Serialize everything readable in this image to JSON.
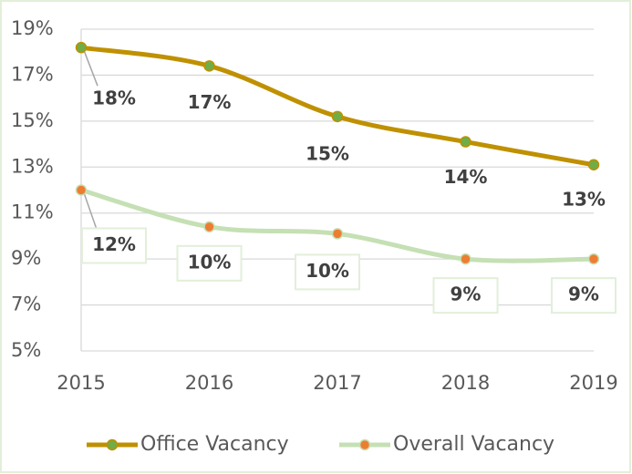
{
  "chart_data": {
    "type": "line",
    "categories": [
      "2015",
      "2016",
      "2017",
      "2018",
      "2019"
    ],
    "series": [
      {
        "name": "Office Vacancy",
        "color": "#bf9000",
        "marker_color": "#70ad47",
        "values": [
          18.2,
          17.4,
          15.2,
          14.1,
          13.1
        ],
        "value_labels": [
          "18%",
          "17%",
          "15%",
          "14%",
          "13%"
        ]
      },
      {
        "name": "Overall Vacancy",
        "color": "#c5e0b4",
        "marker_color": "#ed7d31",
        "values": [
          12.0,
          10.4,
          10.1,
          9.0,
          9.0
        ],
        "value_labels": [
          "12%",
          "10%",
          "10%",
          "9%",
          "9%"
        ]
      }
    ],
    "ylim": [
      5,
      19
    ],
    "yticks": [
      {
        "value": 5,
        "label": "5%"
      },
      {
        "value": 7,
        "label": "7%"
      },
      {
        "value": 9,
        "label": "9%"
      },
      {
        "value": 11,
        "label": "11%"
      },
      {
        "value": 13,
        "label": "13%"
      },
      {
        "value": 15,
        "label": "15%"
      },
      {
        "value": 17,
        "label": "17%"
      },
      {
        "value": 19,
        "label": "19%"
      }
    ],
    "grid": true,
    "legend": "bottom"
  }
}
